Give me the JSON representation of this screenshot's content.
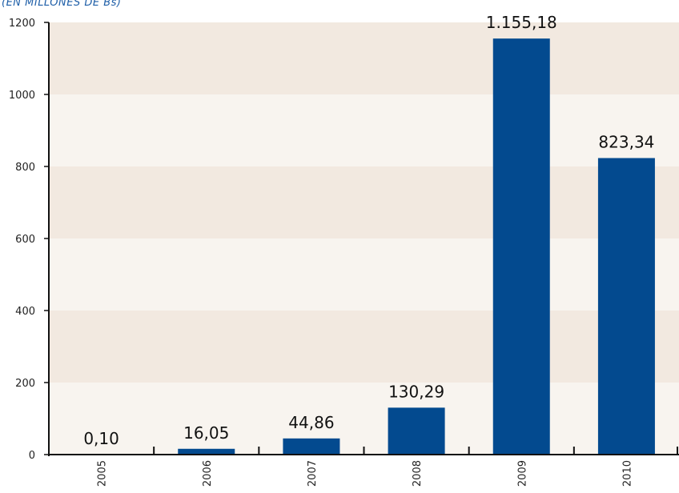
{
  "subtitle": "(EN MILLONES DE Bs)",
  "colors": {
    "bar": "#034a8f",
    "band_dark": "#f2e9e0",
    "band_light": "#f8f4ef",
    "axis": "#111111",
    "subtitle": "#1f5fa8"
  },
  "chart_data": {
    "type": "bar",
    "title": "",
    "xlabel": "",
    "ylabel": "",
    "categories": [
      "2005",
      "2006",
      "2007",
      "2008",
      "2009",
      "2010"
    ],
    "values": [
      0.1,
      16.05,
      44.86,
      130.29,
      1155.18,
      823.34
    ],
    "data_labels": [
      "0,10",
      "16,05",
      "44,86",
      "130,29",
      "1.155,18",
      "823,34"
    ],
    "ylim": [
      0,
      1200
    ],
    "yticks": [
      0,
      200,
      400,
      600,
      800,
      1000,
      1200
    ],
    "grid": "alternating horizontal bands",
    "legend": "none"
  }
}
